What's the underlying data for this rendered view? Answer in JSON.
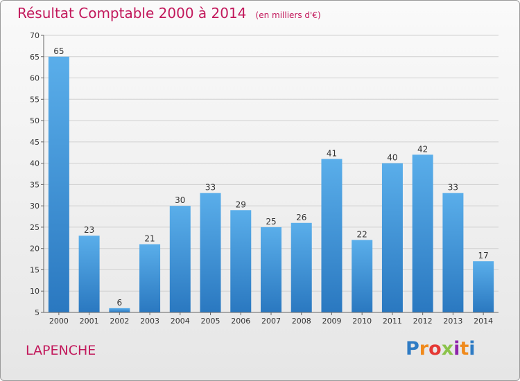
{
  "chart_data": {
    "type": "bar",
    "title": "Résultat Comptable 2000 à 2014",
    "subtitle": "(en milliers d'€)",
    "xlabel": "",
    "ylabel": "",
    "categories": [
      "2000",
      "2001",
      "2002",
      "2003",
      "2004",
      "2005",
      "2006",
      "2007",
      "2008",
      "2009",
      "2010",
      "2011",
      "2012",
      "2013",
      "2014"
    ],
    "values": [
      65,
      23,
      6,
      21,
      30,
      33,
      29,
      25,
      26,
      41,
      22,
      40,
      42,
      33,
      17
    ],
    "ylim": [
      5,
      70
    ],
    "yticks": [
      5,
      10,
      15,
      20,
      25,
      30,
      35,
      40,
      45,
      50,
      55,
      60,
      65,
      70
    ],
    "grid": true,
    "bar_color": "#3d8fd6",
    "title_color": "#c2185b"
  },
  "footer": {
    "place": "LAPENCHE",
    "logo_text": "Proxiti"
  },
  "logo_colors": [
    "#2e7bc4",
    "#f08a1c",
    "#e53935",
    "#8bc34a",
    "#8e24aa",
    "#f08a1c",
    "#2e7bc4"
  ]
}
